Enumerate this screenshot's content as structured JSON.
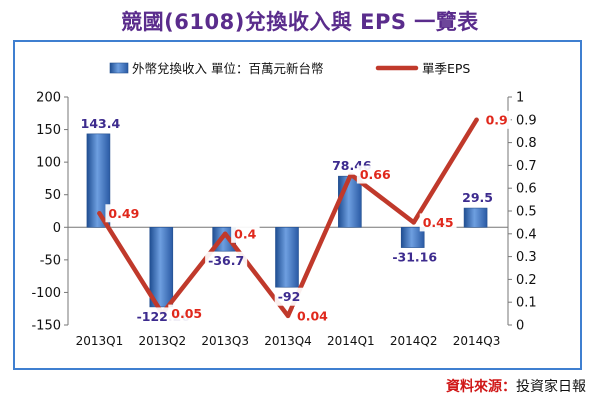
{
  "title": "競國(6108)兌換收入與 EPS 一覽表",
  "source": {
    "label": "資料來源：",
    "value": "投資家日報"
  },
  "colors": {
    "bar": "#2f5fa8",
    "bar_light": "#6e9fe0",
    "line": "#c0392b",
    "bar_label": "#3d2b8e",
    "line_label": "#e0281c",
    "frame": "#3f7fd0"
  },
  "chart_data": {
    "type": "bar",
    "categories": [
      "2013Q1",
      "2013Q2",
      "2013Q3",
      "2013Q4",
      "2014Q1",
      "2014Q2",
      "2014Q3"
    ],
    "series": [
      {
        "name": "外幣兌換收入 單位：百萬元新台幣",
        "type": "bar",
        "axis": "left",
        "values": [
          143.4,
          -122.26,
          -36.7,
          -92,
          78.46,
          -31.16,
          29.5
        ],
        "labels": [
          "143.4",
          "-122.26",
          "-36.7",
          "-92",
          "78.46",
          "-31.16",
          "29.5"
        ]
      },
      {
        "name": "單季EPS",
        "type": "line",
        "axis": "right",
        "values": [
          0.49,
          0.05,
          0.4,
          0.04,
          0.66,
          0.45,
          0.9
        ],
        "labels": [
          "0.49",
          "0.05",
          "0.4",
          "0.04",
          "0.66",
          "0.45",
          "0.9"
        ]
      }
    ],
    "ylim": [
      -150,
      200
    ],
    "yticks": [
      "200",
      "150",
      "100",
      "50",
      "0",
      "-50",
      "-100",
      "-150"
    ],
    "y2lim": [
      0,
      1
    ],
    "y2ticks": [
      "1",
      "0.9",
      "0.8",
      "0.7",
      "0.6",
      "0.5",
      "0.4",
      "0.3",
      "0.2",
      "0.1",
      "0"
    ],
    "legend_position": "top",
    "grid": false
  }
}
